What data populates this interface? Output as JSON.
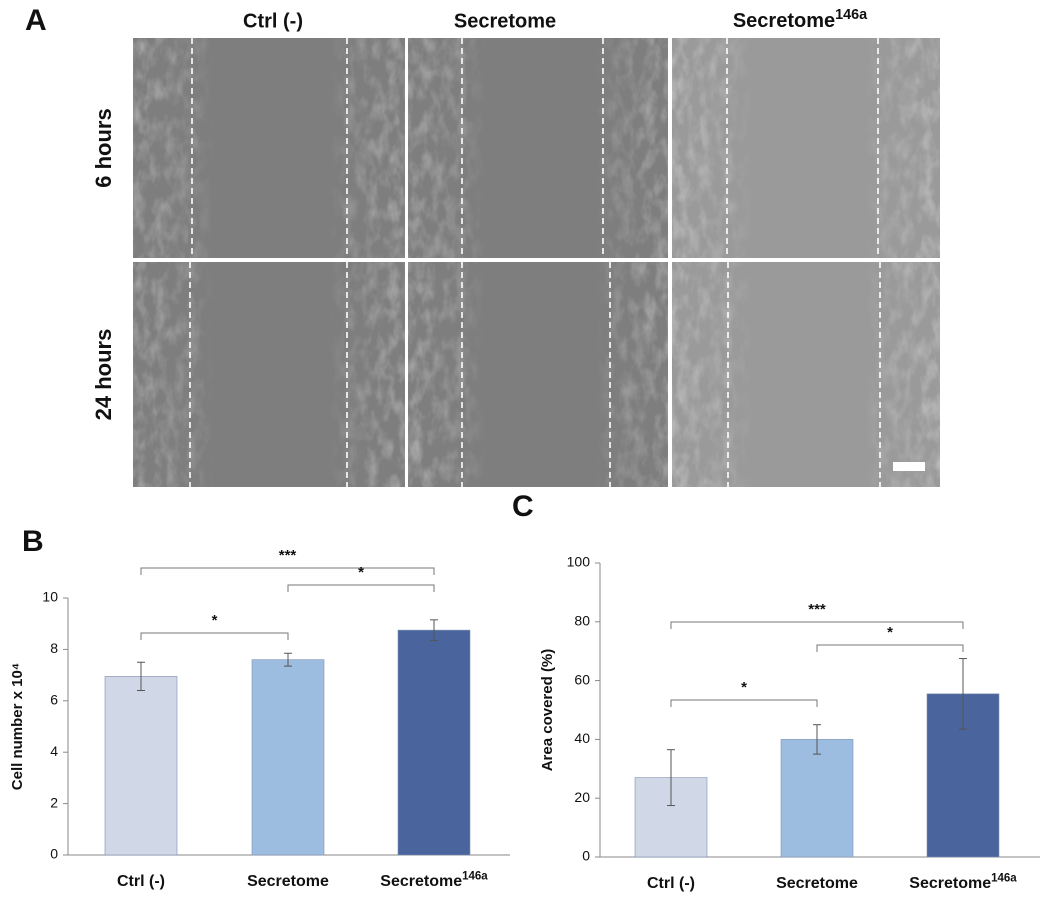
{
  "panel_a": {
    "label": "A",
    "columns": [
      "Ctrl (-)",
      "Secretome",
      {
        "text": "Secretome",
        "superscript": "146a"
      }
    ],
    "rows": [
      "6 hours",
      "24 hours"
    ]
  },
  "chart_data": [
    {
      "type": "bar",
      "panel_label": "B",
      "y_label": "Cell number x 10⁴",
      "categories": [
        "Ctrl (-)",
        "Secretome",
        {
          "text": "Secretome",
          "superscript": "146a"
        }
      ],
      "values": [
        6.95,
        7.6,
        8.75
      ],
      "errors": [
        0.55,
        0.25,
        0.4
      ],
      "colors": [
        "#d0d8e8",
        "#9dbde0",
        "#4a659e"
      ],
      "ylim": [
        0,
        10
      ],
      "yticks": [
        0,
        2,
        4,
        6,
        8,
        10
      ],
      "annotations": [
        "*",
        "***",
        "*"
      ]
    },
    {
      "type": "bar",
      "panel_label": "C",
      "y_label": "Area covered (%)",
      "categories": [
        "Ctrl (-)",
        "Secretome",
        {
          "text": "Secretome",
          "superscript": "146a"
        }
      ],
      "values": [
        27,
        40,
        55.5
      ],
      "errors": [
        9.5,
        5,
        12
      ],
      "colors": [
        "#d0d8e8",
        "#9dbde0",
        "#4a659e"
      ],
      "ylim": [
        0,
        100
      ],
      "yticks": [
        0,
        20,
        40,
        60,
        80,
        100
      ],
      "annotations": [
        "*",
        "***",
        "*"
      ]
    }
  ]
}
